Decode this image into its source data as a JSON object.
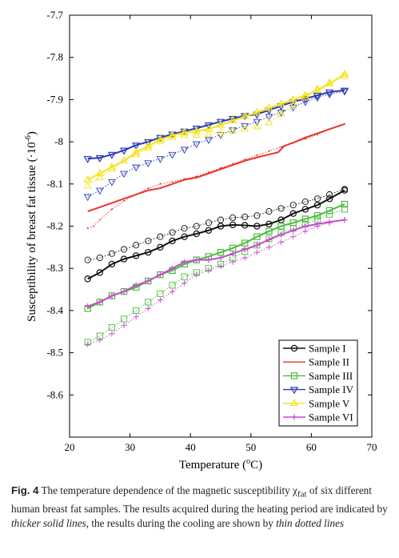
{
  "chart_data": {
    "type": "line",
    "xlabel_text": "Temperature (",
    "xlabel_sup": "o",
    "xlabel_unit": "C)",
    "ylabel_text": "Susceptibility of breast fat tissue (·10",
    "ylabel_sup": "-6",
    "ylabel_close": ")",
    "xlim": [
      20,
      70
    ],
    "ylim": [
      -8.7,
      -7.7
    ],
    "xticks": [
      20,
      30,
      40,
      50,
      60,
      70
    ],
    "yticks": [
      -7.7,
      -7.8,
      -7.9,
      -8,
      -8.1,
      -8.2,
      -8.3,
      -8.4,
      -8.5,
      -8.6
    ],
    "grid": false,
    "legend_position": "bottom-right",
    "series": [
      {
        "name": "Sample I",
        "color": "#111111",
        "marker": "circle",
        "heating": {
          "x": [
            23,
            25,
            27,
            29,
            31,
            33,
            35,
            37,
            39,
            41,
            43,
            45,
            47,
            49,
            51,
            53,
            55,
            57,
            59,
            61,
            63,
            65.5
          ],
          "y": [
            -8.325,
            -8.31,
            -8.29,
            -8.278,
            -8.27,
            -8.262,
            -8.25,
            -8.235,
            -8.225,
            -8.218,
            -8.21,
            -8.2,
            -8.197,
            -8.198,
            -8.2,
            -8.195,
            -8.185,
            -8.17,
            -8.16,
            -8.15,
            -8.135,
            -8.115
          ]
        },
        "cooling": {
          "x": [
            23,
            25,
            27,
            29,
            31,
            33,
            35,
            37,
            39,
            41,
            43,
            45,
            47,
            49,
            51,
            53,
            55,
            57,
            59,
            61,
            63,
            65.5
          ],
          "y": [
            -8.28,
            -8.275,
            -8.265,
            -8.255,
            -8.245,
            -8.235,
            -8.225,
            -8.215,
            -8.205,
            -8.2,
            -8.192,
            -8.185,
            -8.18,
            -8.178,
            -8.175,
            -8.165,
            -8.158,
            -8.15,
            -8.142,
            -8.135,
            -8.125,
            -8.112
          ]
        }
      },
      {
        "name": "Sample II",
        "color": "#e8352a",
        "marker": "none",
        "heating": {
          "x": [
            23,
            25,
            27,
            29,
            31,
            33,
            35,
            37,
            39,
            41,
            43,
            45,
            47,
            49,
            51,
            53,
            54.5,
            55.5,
            57,
            59,
            61,
            63,
            65.5
          ],
          "y": [
            -8.165,
            -8.155,
            -8.145,
            -8.135,
            -8.125,
            -8.115,
            -8.11,
            -8.1,
            -8.09,
            -8.085,
            -8.075,
            -8.065,
            -8.055,
            -8.045,
            -8.037,
            -8.03,
            -8.025,
            -8.01,
            -8.002,
            -7.99,
            -7.98,
            -7.97,
            -7.958
          ]
        },
        "cooling": {
          "x": [
            23,
            24,
            25,
            27,
            29,
            31,
            33,
            35,
            37,
            39,
            41,
            43,
            45,
            47,
            49,
            51,
            53,
            55,
            57,
            59,
            61,
            63,
            65.5
          ],
          "y": [
            -8.205,
            -8.2,
            -8.185,
            -8.16,
            -8.14,
            -8.125,
            -8.11,
            -8.1,
            -8.095,
            -8.088,
            -8.082,
            -8.072,
            -8.062,
            -8.052,
            -8.042,
            -8.032,
            -8.022,
            -8.012,
            -8.003,
            -7.993,
            -7.983,
            -7.97,
            -7.958
          ]
        }
      },
      {
        "name": "Sample III",
        "color": "#4cbb3c",
        "marker": "square",
        "heating": {
          "x": [
            23,
            25,
            27,
            29,
            31,
            33,
            35,
            37,
            39,
            41,
            43,
            45,
            47,
            49,
            51,
            53,
            55,
            57,
            59,
            61,
            63,
            65.5
          ],
          "y": [
            -8.395,
            -8.38,
            -8.365,
            -8.355,
            -8.345,
            -8.33,
            -8.315,
            -8.305,
            -8.29,
            -8.28,
            -8.272,
            -8.262,
            -8.252,
            -8.24,
            -8.225,
            -8.212,
            -8.2,
            -8.192,
            -8.183,
            -8.175,
            -8.163,
            -8.148
          ]
        },
        "cooling": {
          "x": [
            23,
            25,
            27,
            29,
            31,
            33,
            35,
            37,
            39,
            41,
            43,
            45,
            47,
            49,
            51,
            53,
            55,
            57,
            59,
            61,
            63,
            65.5
          ],
          "y": [
            -8.475,
            -8.46,
            -8.44,
            -8.42,
            -8.4,
            -8.38,
            -8.36,
            -8.34,
            -8.32,
            -8.31,
            -8.3,
            -8.29,
            -8.275,
            -8.26,
            -8.245,
            -8.23,
            -8.215,
            -8.205,
            -8.195,
            -8.185,
            -8.172,
            -8.16
          ]
        }
      },
      {
        "name": "Sample IV",
        "color": "#2a3ab8",
        "marker": "tri-down",
        "heating": {
          "x": [
            23,
            25,
            27,
            29,
            31,
            33,
            35,
            37,
            39,
            41,
            43,
            45,
            47,
            49,
            51,
            53,
            55,
            57,
            59,
            61,
            63,
            65.5
          ],
          "y": [
            -8.04,
            -8.038,
            -8.03,
            -8.02,
            -8.008,
            -8.0,
            -7.99,
            -7.982,
            -7.975,
            -7.968,
            -7.96,
            -7.952,
            -7.945,
            -7.938,
            -7.935,
            -7.925,
            -7.915,
            -7.905,
            -7.898,
            -7.89,
            -7.882,
            -7.878
          ]
        },
        "cooling": {
          "x": [
            23,
            25,
            27,
            29,
            31,
            33,
            35,
            37,
            39,
            41,
            43,
            45,
            47,
            49,
            51,
            53,
            55,
            57,
            59,
            61,
            63,
            65.5
          ],
          "y": [
            -8.13,
            -8.115,
            -8.095,
            -8.075,
            -8.06,
            -8.05,
            -8.04,
            -8.03,
            -8.018,
            -8.005,
            -7.995,
            -7.983,
            -7.972,
            -7.962,
            -7.952,
            -7.94,
            -7.93,
            -7.918,
            -7.905,
            -7.895,
            -7.887,
            -7.88
          ]
        }
      },
      {
        "name": "Sample V",
        "color": "#f5e318",
        "marker": "tri-up",
        "heating": {
          "x": [
            23,
            25,
            27,
            29,
            31,
            33,
            35,
            37,
            39,
            41,
            43,
            45,
            47,
            49,
            51,
            53,
            55,
            57,
            59,
            61,
            63,
            65.5
          ],
          "y": [
            -8.09,
            -8.075,
            -8.06,
            -8.045,
            -8.025,
            -8.01,
            -7.995,
            -7.985,
            -7.978,
            -7.975,
            -7.97,
            -7.96,
            -7.95,
            -7.94,
            -7.93,
            -7.92,
            -7.91,
            -7.9,
            -7.89,
            -7.878,
            -7.862,
            -7.84
          ]
        },
        "cooling": {
          "x": [
            23,
            25,
            27,
            29,
            31,
            33,
            35,
            37,
            39,
            41,
            43,
            45,
            47,
            49,
            51,
            53,
            55,
            57,
            59,
            61,
            63,
            65.5
          ],
          "y": [
            -8.105,
            -8.085,
            -8.065,
            -8.045,
            -8.03,
            -8.015,
            -8.0,
            -7.99,
            -7.985,
            -7.985,
            -7.982,
            -7.978,
            -7.975,
            -7.97,
            -7.965,
            -7.955,
            -7.935,
            -7.915,
            -7.895,
            -7.875,
            -7.86,
            -7.845
          ]
        }
      },
      {
        "name": "Sample VI",
        "color": "#c94ad1",
        "marker": "plus",
        "heating": {
          "x": [
            23,
            25,
            27,
            29,
            31,
            33,
            35,
            37,
            39,
            41,
            43,
            45,
            47,
            49,
            51,
            53,
            55,
            57,
            59,
            61,
            63,
            65.5
          ],
          "y": [
            -8.39,
            -8.38,
            -8.365,
            -8.355,
            -8.34,
            -8.33,
            -8.315,
            -8.3,
            -8.285,
            -8.28,
            -8.28,
            -8.275,
            -8.265,
            -8.255,
            -8.245,
            -8.232,
            -8.22,
            -8.21,
            -8.2,
            -8.195,
            -8.19,
            -8.185
          ]
        },
        "cooling": {
          "x": [
            23,
            25,
            27,
            29,
            31,
            33,
            35,
            37,
            39,
            41,
            43,
            45,
            47,
            49,
            51,
            53,
            55,
            57,
            59,
            61,
            63,
            65.5
          ],
          "y": [
            -8.48,
            -8.47,
            -8.455,
            -8.435,
            -8.415,
            -8.395,
            -8.375,
            -8.355,
            -8.335,
            -8.315,
            -8.305,
            -8.295,
            -8.285,
            -8.275,
            -8.262,
            -8.25,
            -8.238,
            -8.225,
            -8.212,
            -8.2,
            -8.192,
            -8.185
          ]
        }
      }
    ]
  },
  "caption": {
    "label": "Fig. 4",
    "part1": "  The temperature dependence of the magnetic susceptibility χ",
    "sub": "fat",
    "part2": " of six different human breast fat samples. The results acquired during the heating period are indicated by ",
    "em1": "thicker solid lines",
    "part3": ", the results during the cooling are shown by ",
    "em2": "thin dotted lines"
  }
}
